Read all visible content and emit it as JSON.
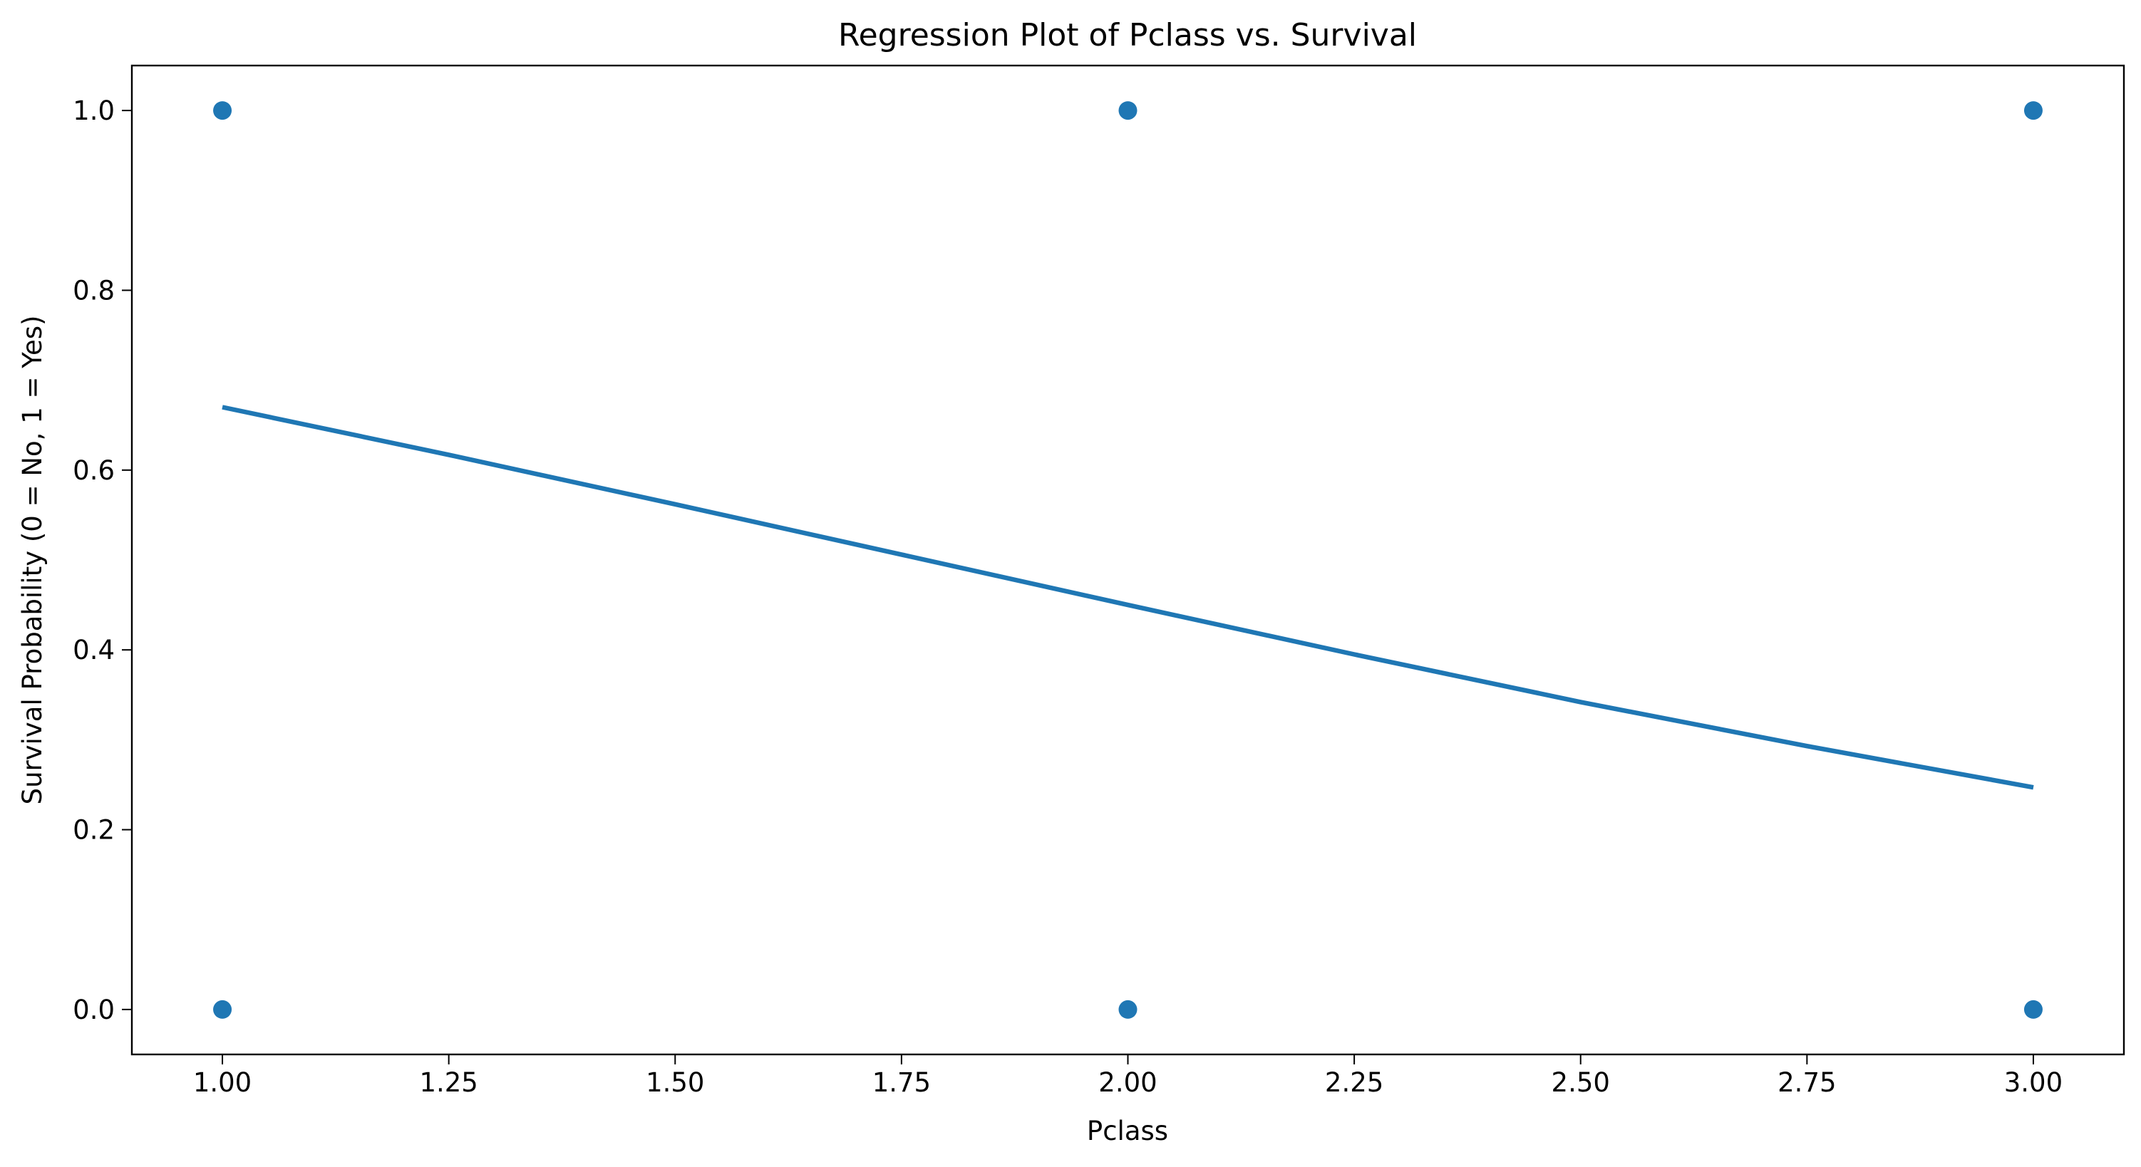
{
  "chart_data": {
    "type": "scatter",
    "title": "Regression Plot of Pclass vs. Survival",
    "xlabel": "Pclass",
    "ylabel": "Survival Probability (0 = No, 1 = Yes)",
    "xlim": [
      0.9,
      3.1
    ],
    "ylim": [
      -0.05,
      1.05
    ],
    "xticks": [
      1.0,
      1.25,
      1.5,
      1.75,
      2.0,
      2.25,
      2.5,
      2.75,
      3.0
    ],
    "xtick_labels": [
      "1.00",
      "1.25",
      "1.50",
      "1.75",
      "2.00",
      "2.25",
      "2.50",
      "2.75",
      "3.00"
    ],
    "yticks": [
      0.0,
      0.2,
      0.4,
      0.6,
      0.8,
      1.0
    ],
    "ytick_labels": [
      "0.0",
      "0.2",
      "0.4",
      "0.6",
      "0.8",
      "1.0"
    ],
    "grid": false,
    "color": "#1f77b4",
    "points": [
      {
        "x": 1,
        "y": 1
      },
      {
        "x": 1,
        "y": 0
      },
      {
        "x": 2,
        "y": 1
      },
      {
        "x": 2,
        "y": 0
      },
      {
        "x": 3,
        "y": 1
      },
      {
        "x": 3,
        "y": 0
      }
    ],
    "regression_curve": {
      "x": [
        1.0,
        1.25,
        1.5,
        1.75,
        2.0,
        2.25,
        2.5,
        2.75,
        3.0
      ],
      "y": [
        0.67,
        0.617,
        0.562,
        0.506,
        0.45,
        0.395,
        0.342,
        0.293,
        0.247
      ]
    }
  }
}
